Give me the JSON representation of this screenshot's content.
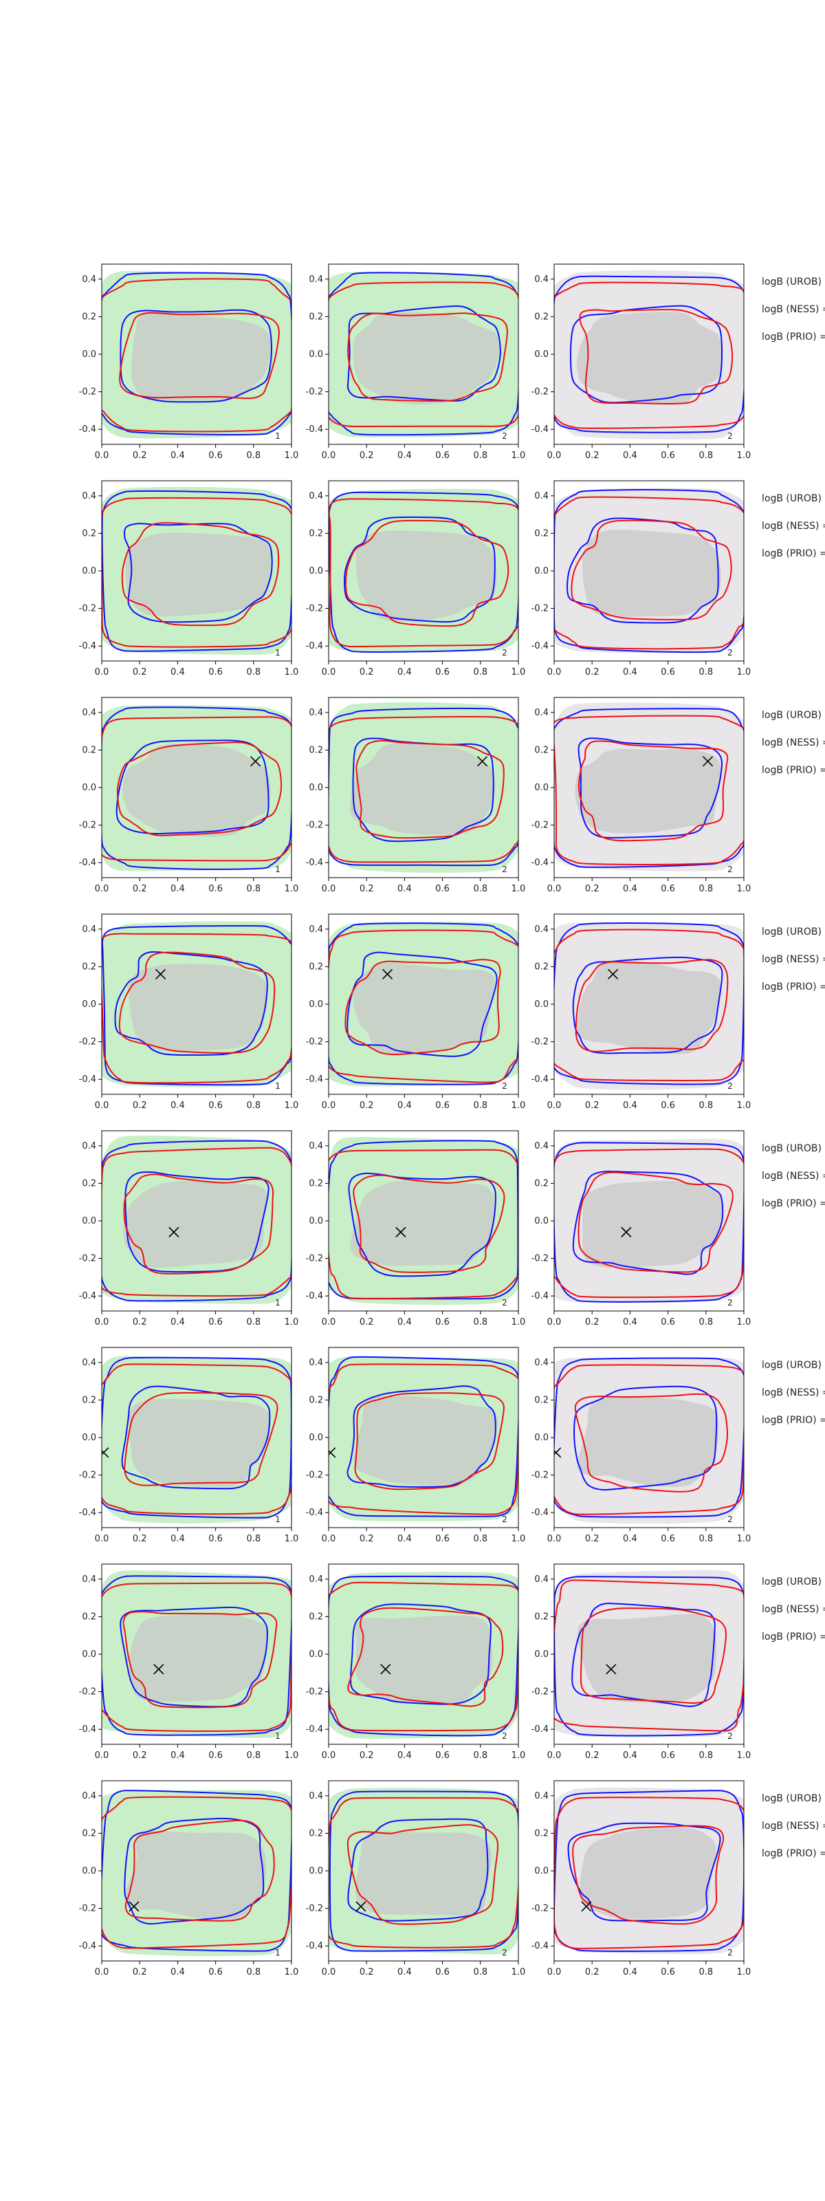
{
  "chart_data": {
    "type": "contour-grid",
    "rows": 8,
    "cols": 3,
    "xlim": [
      0.0,
      1.0
    ],
    "ylim": [
      -0.48,
      0.48
    ],
    "x_ticks": [
      "0.0",
      "0.2",
      "0.4",
      "0.6",
      "0.8",
      "1.0"
    ],
    "y_ticks": [
      "0.4",
      "0.2",
      "0.0",
      "-0.2",
      "-0.4"
    ],
    "column_corner_labels": [
      "1",
      "2",
      "2"
    ],
    "side_labels": [
      "logB (UROB) =",
      "logB (NESS) =",
      "logB (PRIO) ="
    ],
    "colors": {
      "blue": "#1010ff",
      "red": "#ee1111",
      "green_fill": "#c8efc8",
      "grey_fill": "#e8e6e9",
      "inner_fill": "#c8c8c8",
      "frame": "#000000"
    },
    "markers": [
      null,
      null,
      {
        "x": 0.81,
        "y": 0.14
      },
      {
        "x": 0.31,
        "y": 0.16
      },
      {
        "x": 0.38,
        "y": -0.06
      },
      {
        "x": 0.01,
        "y": -0.08
      },
      {
        "x": 0.3,
        "y": -0.08
      },
      {
        "x": 0.17,
        "y": -0.19
      }
    ]
  }
}
